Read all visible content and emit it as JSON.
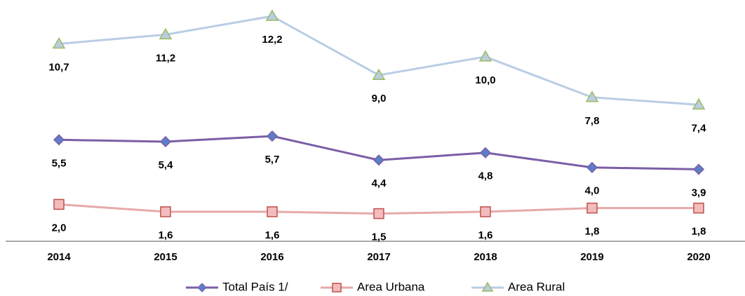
{
  "chart_data": {
    "type": "line",
    "categories": [
      "2014",
      "2015",
      "2016",
      "2017",
      "2018",
      "2019",
      "2020"
    ],
    "ylim": [
      0,
      13
    ],
    "legend": "bottom",
    "series": [
      {
        "name": "Total País 1/",
        "color": "#7b5ea7",
        "marker": "diamond",
        "marker_color": "#5b7fc7",
        "values": [
          5.5,
          5.4,
          5.7,
          4.4,
          4.8,
          4.0,
          3.9
        ],
        "value_labels": [
          "5,5",
          "5,4",
          "5,7",
          "4,4",
          "4,8",
          "4,0",
          "3,9"
        ]
      },
      {
        "name": "Area Urbana",
        "color": "#e6aaaa",
        "marker": "square",
        "marker_color": "#c0504d",
        "values": [
          2.0,
          1.6,
          1.6,
          1.5,
          1.6,
          1.8,
          1.8
        ],
        "value_labels": [
          "2,0",
          "1,6",
          "1,6",
          "1,5",
          "1,6",
          "1,8",
          "1,8"
        ]
      },
      {
        "name": "Area Rural",
        "color": "#b9cde5",
        "marker": "triangle",
        "marker_color": "#9bbb59",
        "values": [
          10.7,
          11.2,
          12.2,
          9.0,
          10.0,
          7.8,
          7.4
        ],
        "value_labels": [
          "10,7",
          "11,2",
          "12,2",
          "9,0",
          "10,0",
          "7,8",
          "7,4"
        ]
      }
    ]
  }
}
